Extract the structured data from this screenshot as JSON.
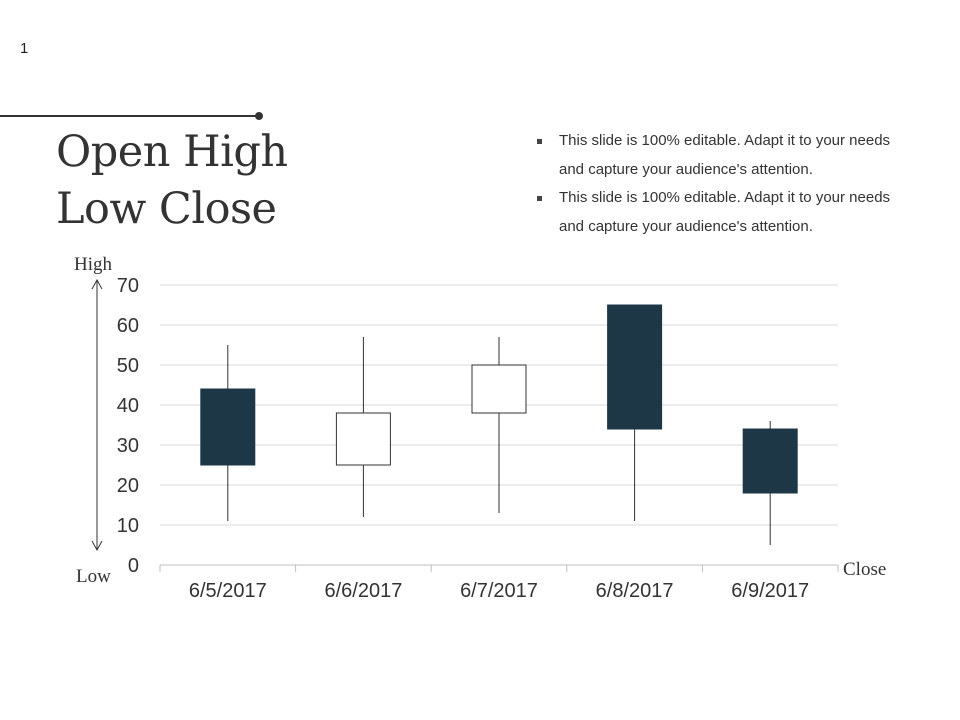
{
  "slide": {
    "number": "1",
    "title_lines": [
      "Open High",
      "Low Close"
    ],
    "bullets": [
      {
        "lines": [
          "This slide is 100% editable. Adapt it to your needs",
          "and capture your audience's attention."
        ]
      },
      {
        "lines": [
          "This slide is 100% editable. Adapt it to your needs",
          "and capture your audience's attention."
        ]
      }
    ]
  },
  "colors": {
    "filled_candle": "#1e3746",
    "hollow_candle": "#ffffff",
    "candle_stroke": "#333333",
    "gridline": "#d9d9d9",
    "text": "#333333"
  },
  "chart_data": {
    "type": "candlestick",
    "title": "",
    "categories": [
      "6/5/2017",
      "6/6/2017",
      "6/7/2017",
      "6/8/2017",
      "6/9/2017"
    ],
    "series": [
      {
        "open": [
          44,
          25,
          38,
          65,
          34
        ],
        "high": [
          55,
          57,
          57,
          65,
          36
        ],
        "low": [
          11,
          12,
          13,
          11,
          5
        ],
        "close": [
          25,
          38,
          50,
          34,
          18
        ]
      }
    ],
    "ylim": [
      0,
      70
    ],
    "yticks": [
      0,
      10,
      20,
      30,
      40,
      50,
      60,
      70
    ],
    "grid": true,
    "axis_annotations": {
      "high": "High",
      "low": "Low",
      "close": "Close"
    }
  }
}
